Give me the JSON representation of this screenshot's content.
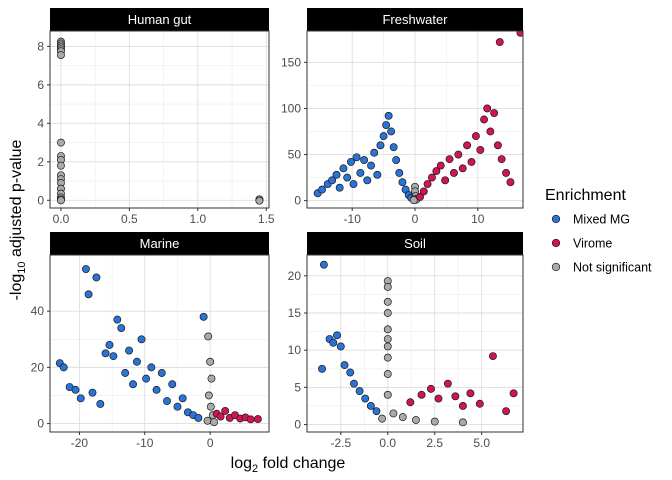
{
  "chart_data": {
    "type": "scatter",
    "xlabel_base": "log",
    "xlabel_sub": "2",
    "xlabel_rest": " fold change",
    "ylabel_prefix": "-log",
    "ylabel_sub": "10",
    "ylabel_rest": " adjusted p-value",
    "legend": {
      "title": "Enrichment",
      "placement": "right",
      "entries": [
        {
          "label": "Mixed MG",
          "color": "#2A73D9"
        },
        {
          "label": "Virome",
          "color": "#D01550"
        },
        {
          "label": "Not significant",
          "color": "#AAAAAA"
        }
      ]
    },
    "panels": [
      {
        "title": "Human gut",
        "xlim": [
          -0.08,
          1.52
        ],
        "ylim": [
          -0.4,
          8.8
        ],
        "xticks": [
          0.0,
          0.5,
          1.0,
          1.5
        ],
        "xtick_labels": [
          "0.0",
          "0.5",
          "1.0",
          "1.5"
        ],
        "yticks": [
          0,
          2,
          4,
          6,
          8
        ],
        "ytick_labels": [
          "0",
          "2",
          "4",
          "6",
          "8"
        ],
        "points": [
          {
            "g": 2,
            "x": 0,
            "y": 8.25
          },
          {
            "g": 2,
            "x": 0,
            "y": 8.15
          },
          {
            "g": 2,
            "x": 0,
            "y": 8.05
          },
          {
            "g": 2,
            "x": 0,
            "y": 7.95
          },
          {
            "g": 2,
            "x": 0,
            "y": 7.85
          },
          {
            "g": 2,
            "x": 0,
            "y": 7.75
          },
          {
            "g": 2,
            "x": 0,
            "y": 7.55
          },
          {
            "g": 2,
            "x": 0,
            "y": 3.0
          },
          {
            "g": 2,
            "x": 0,
            "y": 2.3
          },
          {
            "g": 2,
            "x": 0,
            "y": 2.1
          },
          {
            "g": 2,
            "x": 0,
            "y": 1.8
          },
          {
            "g": 2,
            "x": 0,
            "y": 1.3
          },
          {
            "g": 2,
            "x": 0,
            "y": 1.1
          },
          {
            "g": 2,
            "x": 0,
            "y": 0.9
          },
          {
            "g": 2,
            "x": 0,
            "y": 0.6
          },
          {
            "g": 2,
            "x": 0,
            "y": 0.35
          },
          {
            "g": 2,
            "x": 0,
            "y": 0.15
          },
          {
            "g": 2,
            "x": 0,
            "y": 0.05
          },
          {
            "g": 2,
            "x": 0,
            "y": 0.0
          },
          {
            "g": 2,
            "x": 1.45,
            "y": 0.0
          },
          {
            "g": 2,
            "x": 1.45,
            "y": 0.05
          },
          {
            "g": 2,
            "x": 1.45,
            "y": -0.02
          }
        ]
      },
      {
        "title": "Freshwater",
        "xlim": [
          -17.2,
          17.2
        ],
        "ylim": [
          -8,
          184
        ],
        "xticks": [
          -10,
          0,
          10
        ],
        "xtick_labels": [
          "-10",
          "0",
          "10"
        ],
        "yticks": [
          0,
          50,
          100,
          150
        ],
        "ytick_labels": [
          "0",
          "50",
          "100",
          "150"
        ],
        "points": [
          {
            "g": 0,
            "x": -15.5,
            "y": 8
          },
          {
            "g": 0,
            "x": -14.8,
            "y": 12
          },
          {
            "g": 0,
            "x": -13.9,
            "y": 18
          },
          {
            "g": 0,
            "x": -13.2,
            "y": 22
          },
          {
            "g": 0,
            "x": -12.5,
            "y": 28
          },
          {
            "g": 0,
            "x": -12.0,
            "y": 14
          },
          {
            "g": 0,
            "x": -11.4,
            "y": 35
          },
          {
            "g": 0,
            "x": -10.8,
            "y": 25
          },
          {
            "g": 0,
            "x": -10.2,
            "y": 42
          },
          {
            "g": 0,
            "x": -9.8,
            "y": 18
          },
          {
            "g": 0,
            "x": -9.3,
            "y": 47
          },
          {
            "g": 0,
            "x": -8.7,
            "y": 30
          },
          {
            "g": 0,
            "x": -8.1,
            "y": 44
          },
          {
            "g": 0,
            "x": -7.6,
            "y": 22
          },
          {
            "g": 0,
            "x": -7.0,
            "y": 38
          },
          {
            "g": 0,
            "x": -6.5,
            "y": 52
          },
          {
            "g": 0,
            "x": -6.0,
            "y": 28
          },
          {
            "g": 0,
            "x": -5.5,
            "y": 60
          },
          {
            "g": 0,
            "x": -5.0,
            "y": 70
          },
          {
            "g": 0,
            "x": -4.6,
            "y": 82
          },
          {
            "g": 0,
            "x": -4.2,
            "y": 92
          },
          {
            "g": 0,
            "x": -3.8,
            "y": 75
          },
          {
            "g": 0,
            "x": -3.4,
            "y": 58
          },
          {
            "g": 0,
            "x": -3.0,
            "y": 44
          },
          {
            "g": 0,
            "x": -2.5,
            "y": 30
          },
          {
            "g": 0,
            "x": -2.0,
            "y": 20
          },
          {
            "g": 0,
            "x": -1.5,
            "y": 12
          },
          {
            "g": 0,
            "x": -1.0,
            "y": 6
          },
          {
            "g": 0,
            "x": -0.6,
            "y": 3
          },
          {
            "g": 2,
            "x": 0.0,
            "y": 15
          },
          {
            "g": 2,
            "x": 0.0,
            "y": 10
          },
          {
            "g": 2,
            "x": 0.1,
            "y": 5
          },
          {
            "g": 2,
            "x": -0.1,
            "y": 2
          },
          {
            "g": 2,
            "x": 0.2,
            "y": 1
          },
          {
            "g": 2,
            "x": -0.2,
            "y": 0.5
          },
          {
            "g": 1,
            "x": 0.8,
            "y": 4
          },
          {
            "g": 1,
            "x": 1.4,
            "y": 10
          },
          {
            "g": 1,
            "x": 2.0,
            "y": 18
          },
          {
            "g": 1,
            "x": 2.7,
            "y": 25
          },
          {
            "g": 1,
            "x": 3.4,
            "y": 32
          },
          {
            "g": 1,
            "x": 4.1,
            "y": 38
          },
          {
            "g": 1,
            "x": 4.8,
            "y": 22
          },
          {
            "g": 1,
            "x": 5.5,
            "y": 45
          },
          {
            "g": 1,
            "x": 6.2,
            "y": 30
          },
          {
            "g": 1,
            "x": 6.9,
            "y": 50
          },
          {
            "g": 1,
            "x": 7.6,
            "y": 35
          },
          {
            "g": 1,
            "x": 8.3,
            "y": 60
          },
          {
            "g": 1,
            "x": 9.0,
            "y": 42
          },
          {
            "g": 1,
            "x": 9.7,
            "y": 70
          },
          {
            "g": 1,
            "x": 10.4,
            "y": 55
          },
          {
            "g": 1,
            "x": 11.0,
            "y": 88
          },
          {
            "g": 1,
            "x": 11.5,
            "y": 100
          },
          {
            "g": 1,
            "x": 12.0,
            "y": 75
          },
          {
            "g": 1,
            "x": 12.6,
            "y": 95
          },
          {
            "g": 1,
            "x": 13.2,
            "y": 60
          },
          {
            "g": 1,
            "x": 13.8,
            "y": 45
          },
          {
            "g": 1,
            "x": 14.5,
            "y": 30
          },
          {
            "g": 1,
            "x": 15.2,
            "y": 20
          },
          {
            "g": 1,
            "x": 13.5,
            "y": 172
          },
          {
            "g": 1,
            "x": 16.8,
            "y": 182
          }
        ]
      },
      {
        "title": "Marine",
        "xlim": [
          -24.5,
          9.0
        ],
        "ylim": [
          -3,
          60
        ],
        "xticks": [
          -20,
          -10,
          0
        ],
        "xtick_labels": [
          "-20",
          "-10",
          "0"
        ],
        "yticks": [
          0,
          20,
          40
        ],
        "ytick_labels": [
          "0",
          "20",
          "40"
        ],
        "points": [
          {
            "g": 0,
            "x": -23.0,
            "y": 21.5
          },
          {
            "g": 0,
            "x": -22.4,
            "y": 20
          },
          {
            "g": 0,
            "x": -21.5,
            "y": 13
          },
          {
            "g": 0,
            "x": -20.6,
            "y": 12
          },
          {
            "g": 0,
            "x": -19.8,
            "y": 9
          },
          {
            "g": 0,
            "x": -19.0,
            "y": 55
          },
          {
            "g": 0,
            "x": -18.6,
            "y": 46
          },
          {
            "g": 0,
            "x": -18.0,
            "y": 11
          },
          {
            "g": 0,
            "x": -17.4,
            "y": 52
          },
          {
            "g": 0,
            "x": -16.8,
            "y": 7
          },
          {
            "g": 0,
            "x": -16.0,
            "y": 25
          },
          {
            "g": 0,
            "x": -15.4,
            "y": 28
          },
          {
            "g": 0,
            "x": -14.8,
            "y": 24
          },
          {
            "g": 0,
            "x": -14.2,
            "y": 37
          },
          {
            "g": 0,
            "x": -13.6,
            "y": 34
          },
          {
            "g": 0,
            "x": -13.0,
            "y": 18
          },
          {
            "g": 0,
            "x": -12.4,
            "y": 26
          },
          {
            "g": 0,
            "x": -11.8,
            "y": 14
          },
          {
            "g": 0,
            "x": -11.2,
            "y": 22
          },
          {
            "g": 0,
            "x": -10.5,
            "y": 30
          },
          {
            "g": 0,
            "x": -9.8,
            "y": 16
          },
          {
            "g": 0,
            "x": -9.0,
            "y": 20
          },
          {
            "g": 0,
            "x": -8.2,
            "y": 12
          },
          {
            "g": 0,
            "x": -7.4,
            "y": 18
          },
          {
            "g": 0,
            "x": -6.6,
            "y": 8
          },
          {
            "g": 0,
            "x": -5.8,
            "y": 14
          },
          {
            "g": 0,
            "x": -5.0,
            "y": 6
          },
          {
            "g": 0,
            "x": -4.2,
            "y": 9
          },
          {
            "g": 0,
            "x": -3.4,
            "y": 4
          },
          {
            "g": 0,
            "x": -2.6,
            "y": 3
          },
          {
            "g": 0,
            "x": -1.8,
            "y": 2
          },
          {
            "g": 0,
            "x": -1.0,
            "y": 38
          },
          {
            "g": 2,
            "x": -0.3,
            "y": 31
          },
          {
            "g": 2,
            "x": 0.0,
            "y": 22
          },
          {
            "g": 2,
            "x": 0.2,
            "y": 16
          },
          {
            "g": 2,
            "x": -0.2,
            "y": 10
          },
          {
            "g": 2,
            "x": 0.1,
            "y": 6
          },
          {
            "g": 2,
            "x": 0.4,
            "y": 3
          },
          {
            "g": 2,
            "x": -0.4,
            "y": 1
          },
          {
            "g": 2,
            "x": 0.6,
            "y": 0.5
          },
          {
            "g": 1,
            "x": 1.0,
            "y": 3.5
          },
          {
            "g": 1,
            "x": 1.6,
            "y": 2.5
          },
          {
            "g": 1,
            "x": 2.3,
            "y": 4.5
          },
          {
            "g": 1,
            "x": 3.0,
            "y": 2
          },
          {
            "g": 1,
            "x": 3.8,
            "y": 3
          },
          {
            "g": 1,
            "x": 4.6,
            "y": 1.8
          },
          {
            "g": 1,
            "x": 5.4,
            "y": 2.2
          },
          {
            "g": 1,
            "x": 6.2,
            "y": 1.5
          },
          {
            "g": 1,
            "x": 7.3,
            "y": 1.6
          }
        ]
      },
      {
        "title": "Soil",
        "xlim": [
          -4.3,
          7.2
        ],
        "ylim": [
          -1,
          22.8
        ],
        "xticks": [
          -2.5,
          0.0,
          2.5,
          5.0
        ],
        "xtick_labels": [
          "-2.5",
          "0.0",
          "2.5",
          "5.0"
        ],
        "yticks": [
          0,
          5,
          10,
          15,
          20
        ],
        "ytick_labels": [
          "0",
          "5",
          "10",
          "15",
          "20"
        ],
        "points": [
          {
            "g": 0,
            "x": -3.4,
            "y": 21.5
          },
          {
            "g": 0,
            "x": -3.5,
            "y": 7.5
          },
          {
            "g": 0,
            "x": -3.1,
            "y": 11.5
          },
          {
            "g": 0,
            "x": -2.9,
            "y": 11
          },
          {
            "g": 0,
            "x": -2.7,
            "y": 12
          },
          {
            "g": 0,
            "x": -2.5,
            "y": 10.5
          },
          {
            "g": 0,
            "x": -2.3,
            "y": 8
          },
          {
            "g": 0,
            "x": -2.0,
            "y": 7
          },
          {
            "g": 0,
            "x": -1.8,
            "y": 5.5
          },
          {
            "g": 0,
            "x": -1.5,
            "y": 4.5
          },
          {
            "g": 0,
            "x": -1.2,
            "y": 3.5
          },
          {
            "g": 0,
            "x": -0.9,
            "y": 2.5
          },
          {
            "g": 0,
            "x": -0.6,
            "y": 1.8
          },
          {
            "g": 2,
            "x": 0.0,
            "y": 19.3
          },
          {
            "g": 2,
            "x": 0.0,
            "y": 18.5
          },
          {
            "g": 2,
            "x": 0.0,
            "y": 16.5
          },
          {
            "g": 2,
            "x": 0.0,
            "y": 15
          },
          {
            "g": 2,
            "x": 0.0,
            "y": 12.8
          },
          {
            "g": 2,
            "x": 0.0,
            "y": 11.5
          },
          {
            "g": 2,
            "x": 0.0,
            "y": 10.5
          },
          {
            "g": 2,
            "x": 0.0,
            "y": 9
          },
          {
            "g": 2,
            "x": 0.0,
            "y": 6.8
          },
          {
            "g": 2,
            "x": 0.0,
            "y": 4
          },
          {
            "g": 2,
            "x": 0.3,
            "y": 1.5
          },
          {
            "g": 2,
            "x": 0.8,
            "y": 1.0
          },
          {
            "g": 2,
            "x": -0.3,
            "y": 0.8
          },
          {
            "g": 2,
            "x": 1.5,
            "y": 0.6
          },
          {
            "g": 2,
            "x": 2.5,
            "y": 0.4
          },
          {
            "g": 2,
            "x": 4.0,
            "y": 0.3
          },
          {
            "g": 1,
            "x": 1.2,
            "y": 3
          },
          {
            "g": 1,
            "x": 1.8,
            "y": 4
          },
          {
            "g": 1,
            "x": 2.3,
            "y": 4.8
          },
          {
            "g": 1,
            "x": 2.7,
            "y": 3.5
          },
          {
            "g": 1,
            "x": 3.2,
            "y": 5.5
          },
          {
            "g": 1,
            "x": 3.6,
            "y": 3.8
          },
          {
            "g": 1,
            "x": 4.0,
            "y": 2.5
          },
          {
            "g": 1,
            "x": 4.4,
            "y": 4.2
          },
          {
            "g": 1,
            "x": 4.9,
            "y": 2.8
          },
          {
            "g": 1,
            "x": 5.6,
            "y": 9.2
          },
          {
            "g": 1,
            "x": 6.3,
            "y": 1.8
          },
          {
            "g": 1,
            "x": 6.7,
            "y": 4.2
          }
        ]
      }
    ]
  }
}
